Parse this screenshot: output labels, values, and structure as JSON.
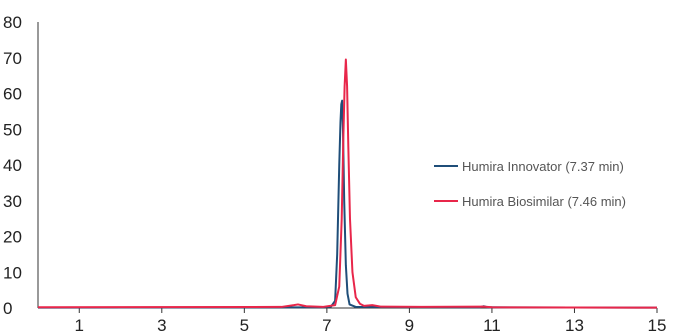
{
  "chart_data": {
    "type": "line",
    "title": "",
    "xlabel": "",
    "ylabel": "",
    "xlim": [
      0,
      15
    ],
    "ylim": [
      0,
      80
    ],
    "xticks": [
      1,
      3,
      5,
      7,
      9,
      11,
      13,
      15
    ],
    "yticks": [
      0,
      10,
      20,
      30,
      40,
      50,
      60,
      70,
      80
    ],
    "grid": false,
    "legend_position": "right",
    "series": [
      {
        "name": "Humira Innovator (7.37 min)",
        "color": "#1f4e79",
        "points": [
          [
            0,
            0.1
          ],
          [
            6.9,
            0.2
          ],
          [
            7.1,
            0.4
          ],
          [
            7.2,
            2
          ],
          [
            7.25,
            15
          ],
          [
            7.3,
            40
          ],
          [
            7.33,
            52
          ],
          [
            7.35,
            57
          ],
          [
            7.37,
            58
          ],
          [
            7.39,
            50
          ],
          [
            7.42,
            30
          ],
          [
            7.46,
            12
          ],
          [
            7.5,
            4
          ],
          [
            7.55,
            1
          ],
          [
            7.7,
            0.3
          ],
          [
            10.7,
            0.2
          ],
          [
            10.8,
            0.5
          ],
          [
            10.9,
            0.2
          ],
          [
            15,
            0.1
          ]
        ]
      },
      {
        "name": "Humira Biosimilar (7.46 min)",
        "color": "#e8264a",
        "points": [
          [
            0,
            0.2
          ],
          [
            5.9,
            0.3
          ],
          [
            6.2,
            0.8
          ],
          [
            6.3,
            1.0
          ],
          [
            6.5,
            0.5
          ],
          [
            6.9,
            0.3
          ],
          [
            7.2,
            0.8
          ],
          [
            7.3,
            6
          ],
          [
            7.36,
            25
          ],
          [
            7.4,
            48
          ],
          [
            7.43,
            62
          ],
          [
            7.46,
            69.5
          ],
          [
            7.49,
            62
          ],
          [
            7.52,
            45
          ],
          [
            7.56,
            25
          ],
          [
            7.62,
            10
          ],
          [
            7.7,
            3
          ],
          [
            7.8,
            1.2
          ],
          [
            7.9,
            0.6
          ],
          [
            8.1,
            0.8
          ],
          [
            8.3,
            0.4
          ],
          [
            9.3,
            0.3
          ],
          [
            10.8,
            0.4
          ],
          [
            11,
            0.2
          ],
          [
            15,
            0.1
          ]
        ]
      }
    ]
  }
}
